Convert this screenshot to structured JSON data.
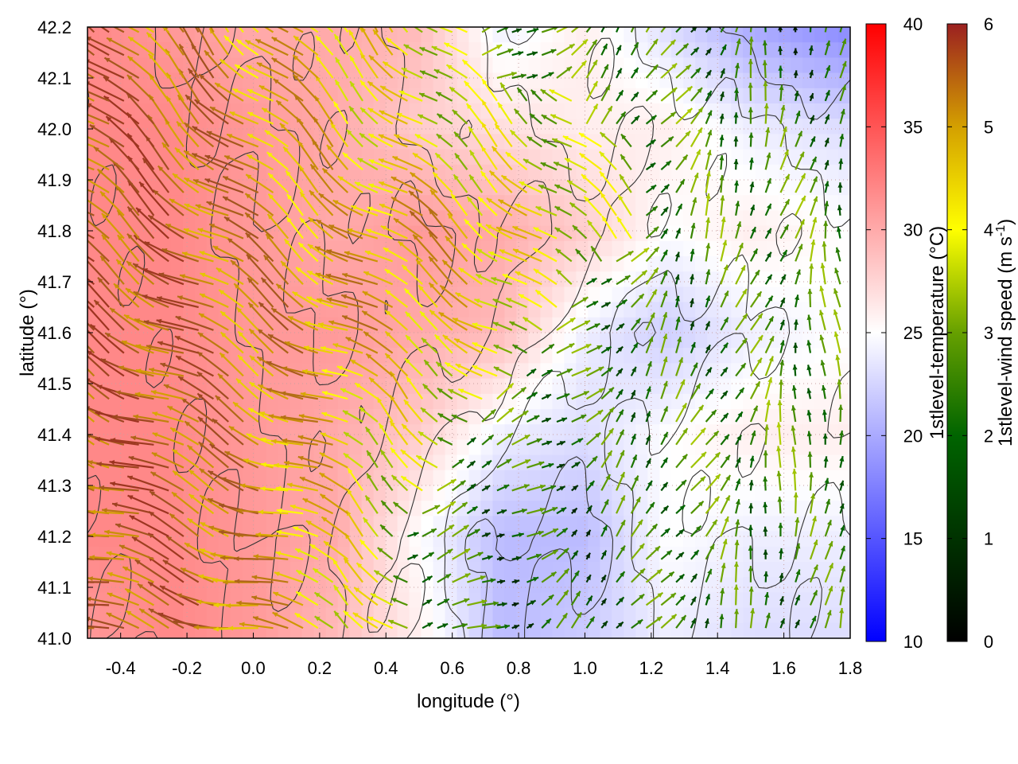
{
  "chart_data": {
    "type": "heatmap",
    "xlabel": "longitude (°)",
    "ylabel": "latitude (°)",
    "xlim": [
      -0.5,
      1.8
    ],
    "ylim": [
      41.0,
      42.2
    ],
    "xticks": [
      "-0.4",
      "-0.2",
      "0.0",
      "0.2",
      "0.4",
      "0.6",
      "0.8",
      "1.0",
      "1.2",
      "1.4",
      "1.6",
      "1.8"
    ],
    "yticks": [
      "41.0",
      "41.1",
      "41.2",
      "41.3",
      "41.4",
      "41.5",
      "41.6",
      "41.7",
      "41.8",
      "41.9",
      "42.0",
      "42.1",
      "42.2"
    ],
    "grid": true,
    "temperature": {
      "label": "1stlevel-temperature (°C)",
      "range": [
        10,
        40
      ],
      "ticks": [
        "10",
        "15",
        "20",
        "25",
        "30",
        "35",
        "40"
      ],
      "colors": [
        "#0000ff",
        "#ffffff",
        "#ff0000"
      ],
      "lon": [
        -0.5,
        -0.25,
        0.0,
        0.25,
        0.5,
        0.75,
        1.0,
        1.25,
        1.5,
        1.8
      ],
      "lat": [
        41.0,
        41.2,
        41.4,
        41.6,
        41.8,
        42.0,
        42.2
      ],
      "values": [
        [
          31,
          32,
          31,
          29,
          26,
          21,
          22,
          24,
          23,
          23
        ],
        [
          32,
          32,
          31,
          30,
          25,
          21,
          21,
          25,
          24,
          24
        ],
        [
          32,
          32,
          31,
          30,
          28,
          24,
          23,
          25,
          26,
          26
        ],
        [
          32,
          32,
          31,
          31,
          30,
          29,
          24,
          22,
          24,
          25
        ],
        [
          32,
          32,
          31,
          30,
          31,
          30,
          28,
          25,
          26,
          25
        ],
        [
          32,
          32,
          31,
          30,
          28,
          27,
          26,
          26,
          24,
          23
        ],
        [
          32,
          31,
          30,
          30,
          29,
          24,
          26,
          23,
          20,
          18
        ]
      ]
    },
    "wind_speed": {
      "label": "1stlevel-wind speed (m s-1)",
      "range": [
        0,
        6
      ],
      "ticks": [
        "0",
        "1",
        "2",
        "3",
        "4",
        "5",
        "6"
      ],
      "colors": [
        "#000000",
        "#006400",
        "#66a000",
        "#ffff00",
        "#d4a000",
        "#a05020",
        "#9b2020"
      ]
    }
  }
}
